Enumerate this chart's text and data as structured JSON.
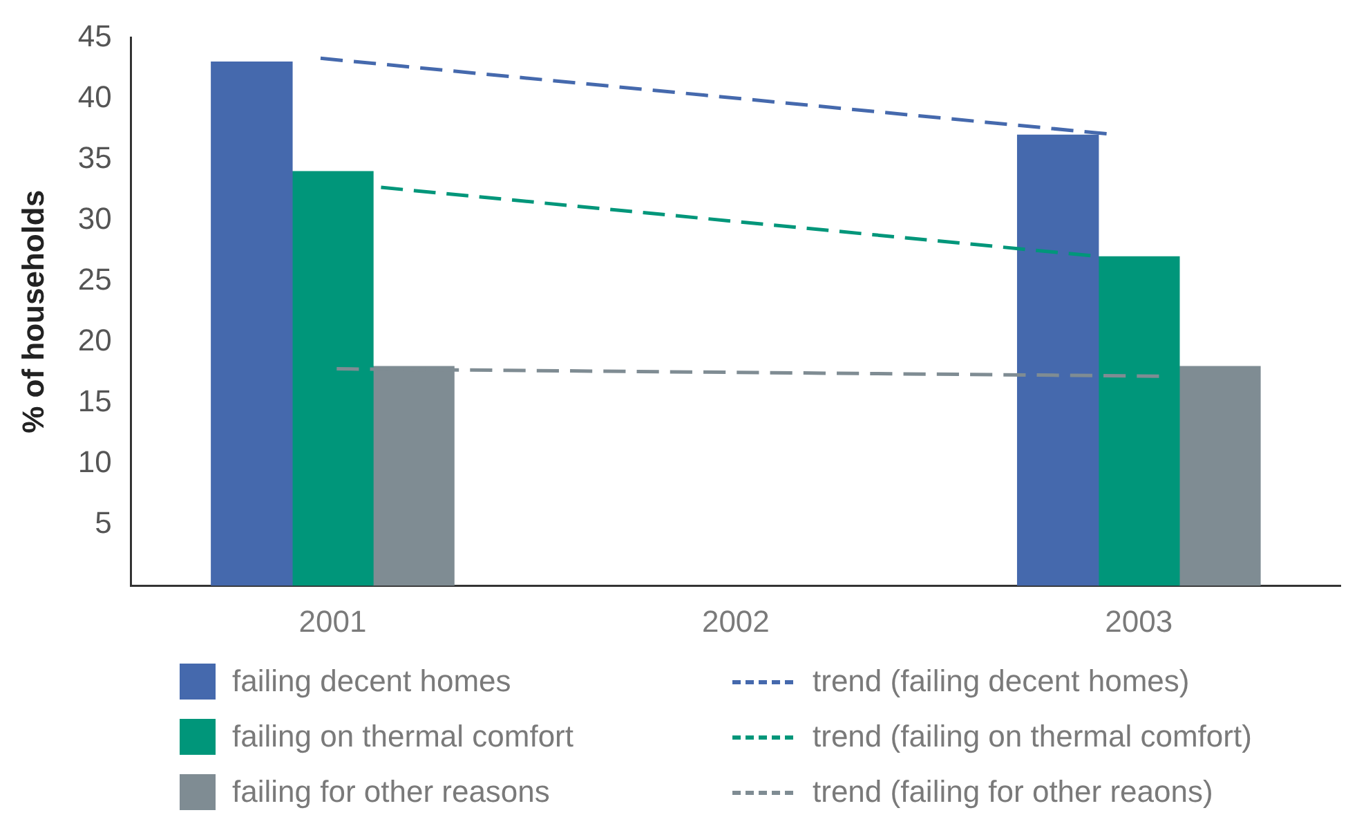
{
  "chart_data": {
    "type": "bar",
    "ylabel": "% of households",
    "x": [
      2001,
      2003
    ],
    "series": [
      {
        "name": "failing decent homes",
        "color": "#4569ad",
        "values": [
          43,
          37
        ]
      },
      {
        "name": "failing on thermal comfort",
        "color": "#00967a",
        "values": [
          34,
          27
        ]
      },
      {
        "name": "failing for other reasons",
        "color": "#7f8c93",
        "values": [
          18,
          18
        ]
      },
      {
        "name": "trend (failing decent homes)",
        "type": "line",
        "color": "#4569ad",
        "line_style": "dashed",
        "x": [
          2000.97,
          2002.92
        ],
        "values": [
          43.3,
          37.1
        ]
      },
      {
        "name": "trend (failing on thermal comfort)",
        "type": "line",
        "color": "#00967a",
        "line_style": "dashed",
        "x": [
          2001.12,
          2002.88
        ],
        "values": [
          32.7,
          27.1
        ]
      },
      {
        "name": "trend (failing for other reaons)",
        "type": "line",
        "color": "#7f8c93",
        "line_style": "dashed",
        "x": [
          2001.01,
          2003.05
        ],
        "values": [
          17.8,
          17.2
        ]
      }
    ],
    "xlim": [
      2000.5,
      2003.5
    ],
    "xticks": [
      2001,
      2002,
      2003
    ],
    "ylim": [
      0,
      45
    ],
    "yticks": [
      5,
      10,
      15,
      20,
      25,
      30,
      35,
      40,
      45
    ],
    "grid": false,
    "legend": "bottom",
    "marker": "none"
  }
}
